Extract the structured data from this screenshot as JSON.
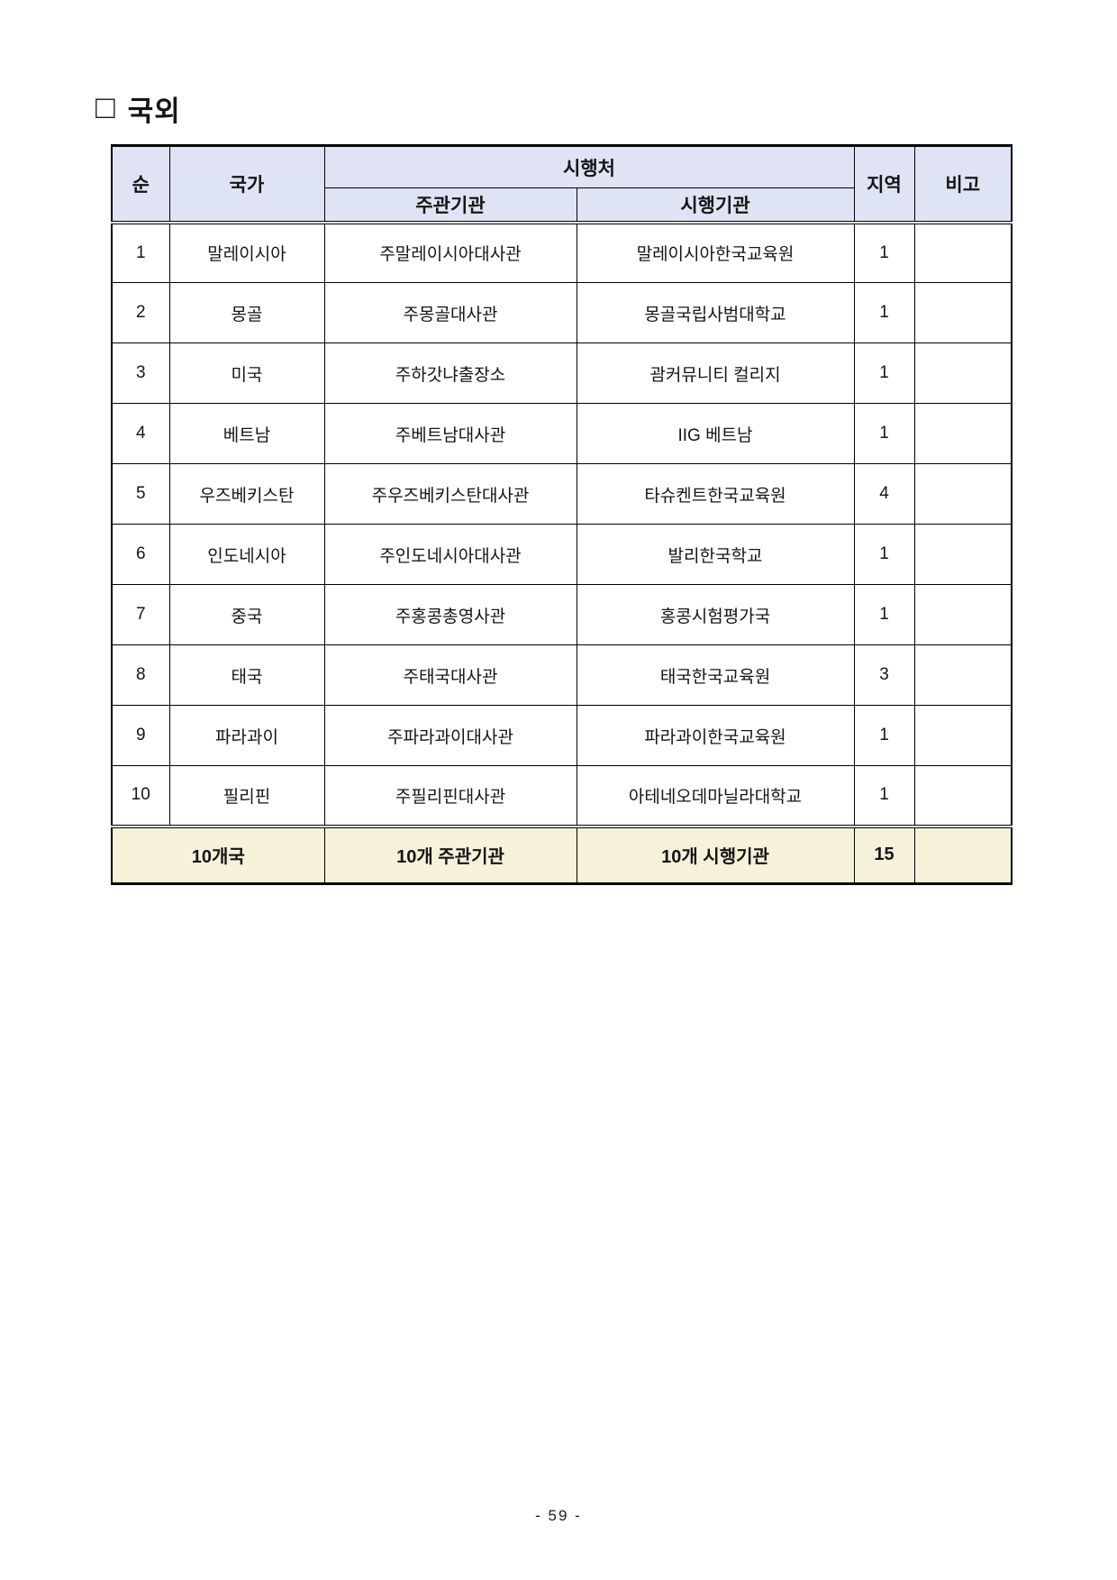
{
  "page": {
    "title_marker": "□",
    "title": "국외",
    "page_number": "- 59 -"
  },
  "table": {
    "headers": {
      "col_no": "순",
      "col_country": "국가",
      "col_agency_group": "시행처",
      "col_supervising": "주관기관",
      "col_implementing": "시행기관",
      "col_region": "지역",
      "col_remarks": "비고"
    },
    "rows": [
      {
        "no": "1",
        "country": "말레이시아",
        "supervising": "주말레이시아대사관",
        "implementing": "말레이시아한국교육원",
        "region": "1",
        "remarks": ""
      },
      {
        "no": "2",
        "country": "몽골",
        "supervising": "주몽골대사관",
        "implementing": "몽골국립사범대학교",
        "region": "1",
        "remarks": ""
      },
      {
        "no": "3",
        "country": "미국",
        "supervising": "주하갓냐출장소",
        "implementing": "괌커뮤니티 컬리지",
        "region": "1",
        "remarks": ""
      },
      {
        "no": "4",
        "country": "베트남",
        "supervising": "주베트남대사관",
        "implementing": "IIG 베트남",
        "region": "1",
        "remarks": ""
      },
      {
        "no": "5",
        "country": "우즈베키스탄",
        "supervising": "주우즈베키스탄대사관",
        "implementing": "타슈켄트한국교육원",
        "region": "4",
        "remarks": ""
      },
      {
        "no": "6",
        "country": "인도네시아",
        "supervising": "주인도네시아대사관",
        "implementing": "발리한국학교",
        "region": "1",
        "remarks": ""
      },
      {
        "no": "7",
        "country": "중국",
        "supervising": "주홍콩총영사관",
        "implementing": "홍콩시험평가국",
        "region": "1",
        "remarks": ""
      },
      {
        "no": "8",
        "country": "태국",
        "supervising": "주태국대사관",
        "implementing": "태국한국교육원",
        "region": "3",
        "remarks": ""
      },
      {
        "no": "9",
        "country": "파라과이",
        "supervising": "주파라과이대사관",
        "implementing": "파라과이한국교육원",
        "region": "1",
        "remarks": ""
      },
      {
        "no": "10",
        "country": "필리핀",
        "supervising": "주필리핀대사관",
        "implementing": "아테네오데마닐라대학교",
        "region": "1",
        "remarks": ""
      }
    ],
    "summary": {
      "country_total": "10개국",
      "supervising_total": "10개 주관기관",
      "implementing_total": "10개 시행기관",
      "region_total": "15",
      "remarks": ""
    },
    "colors": {
      "header_bg": "#dfe4f4",
      "summary_bg": "#f6f1d9"
    }
  }
}
